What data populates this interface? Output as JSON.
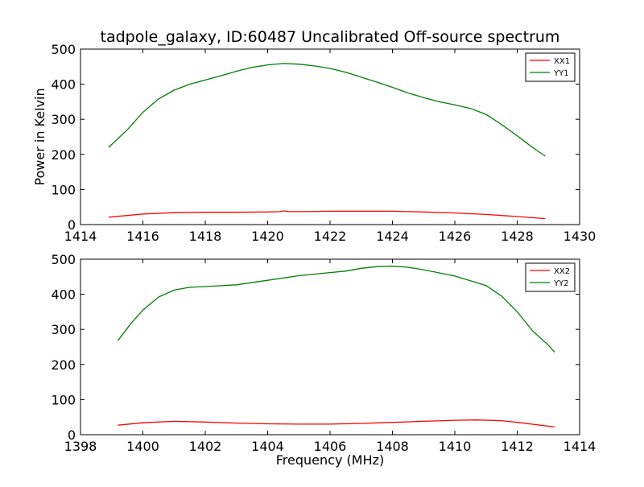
{
  "title": "tadpole_galaxy, ID:60487 Uncalibrated Off-source spectrum",
  "chart_data": [
    {
      "type": "line",
      "title": "tadpole_galaxy, ID:60487 Uncalibrated Off-source spectrum",
      "xlabel": "",
      "ylabel": "Power in Kelvin",
      "xlim": [
        1414,
        1430
      ],
      "ylim": [
        0,
        500
      ],
      "xticks": [
        1414,
        1416,
        1418,
        1420,
        1422,
        1424,
        1426,
        1428,
        1430
      ],
      "yticks": [
        0,
        100,
        200,
        300,
        400,
        500
      ],
      "grid": false,
      "legend": "top-right",
      "series": [
        {
          "name": "XX1",
          "color": "#ff0000",
          "x": [
            1414.9,
            1415.5,
            1416.0,
            1417.0,
            1418.0,
            1419.0,
            1420.0,
            1420.4,
            1420.5,
            1420.7,
            1421.0,
            1422.0,
            1423.0,
            1424.0,
            1425.0,
            1426.0,
            1427.0,
            1428.0,
            1428.9
          ],
          "y": [
            21,
            26,
            30,
            34,
            35,
            35,
            36,
            37,
            39,
            37,
            37,
            38,
            38,
            38,
            36,
            33,
            29,
            23,
            17
          ]
        },
        {
          "name": "YY1",
          "color": "#008000",
          "x": [
            1414.9,
            1415.5,
            1416.0,
            1416.5,
            1417.0,
            1417.5,
            1418.0,
            1418.5,
            1419.0,
            1419.5,
            1420.0,
            1420.5,
            1421.0,
            1421.5,
            1422.0,
            1422.5,
            1423.0,
            1423.5,
            1424.0,
            1424.5,
            1425.0,
            1425.5,
            1426.0,
            1426.5,
            1427.0,
            1427.5,
            1428.0,
            1428.5,
            1428.9
          ],
          "y": [
            220,
            270,
            320,
            358,
            383,
            400,
            412,
            424,
            437,
            448,
            455,
            459,
            457,
            452,
            445,
            434,
            420,
            406,
            391,
            375,
            362,
            350,
            341,
            331,
            314,
            285,
            253,
            219,
            195
          ]
        }
      ]
    },
    {
      "type": "line",
      "title": "",
      "xlabel": "Frequency (MHz)",
      "ylabel": "",
      "xlim": [
        1398,
        1414
      ],
      "ylim": [
        0,
        500
      ],
      "xticks": [
        1398,
        1400,
        1402,
        1404,
        1406,
        1408,
        1410,
        1412,
        1414
      ],
      "yticks": [
        0,
        100,
        200,
        300,
        400,
        500
      ],
      "grid": false,
      "legend": "top-right",
      "series": [
        {
          "name": "XX2",
          "color": "#ff0000",
          "x": [
            1399.2,
            1400.0,
            1401.0,
            1402.0,
            1403.0,
            1404.0,
            1405.0,
            1406.0,
            1407.0,
            1408.0,
            1409.0,
            1410.0,
            1410.7,
            1411.5,
            1412.0,
            1413.2
          ],
          "y": [
            27,
            34,
            38,
            36,
            33,
            31,
            30,
            30,
            32,
            35,
            38,
            41,
            42,
            40,
            35,
            22
          ]
        },
        {
          "name": "YY2",
          "color": "#008000",
          "x": [
            1399.2,
            1399.6,
            1400.0,
            1400.5,
            1401.0,
            1401.5,
            1402.0,
            1403.0,
            1404.0,
            1405.0,
            1406.0,
            1406.5,
            1407.0,
            1407.5,
            1408.0,
            1408.5,
            1409.0,
            1410.0,
            1411.0,
            1411.5,
            1412.0,
            1412.5,
            1413.0,
            1413.2
          ],
          "y": [
            268,
            315,
            355,
            392,
            412,
            420,
            422,
            427,
            440,
            453,
            462,
            466,
            474,
            479,
            480,
            477,
            470,
            452,
            425,
            395,
            350,
            295,
            255,
            235
          ]
        }
      ]
    }
  ]
}
